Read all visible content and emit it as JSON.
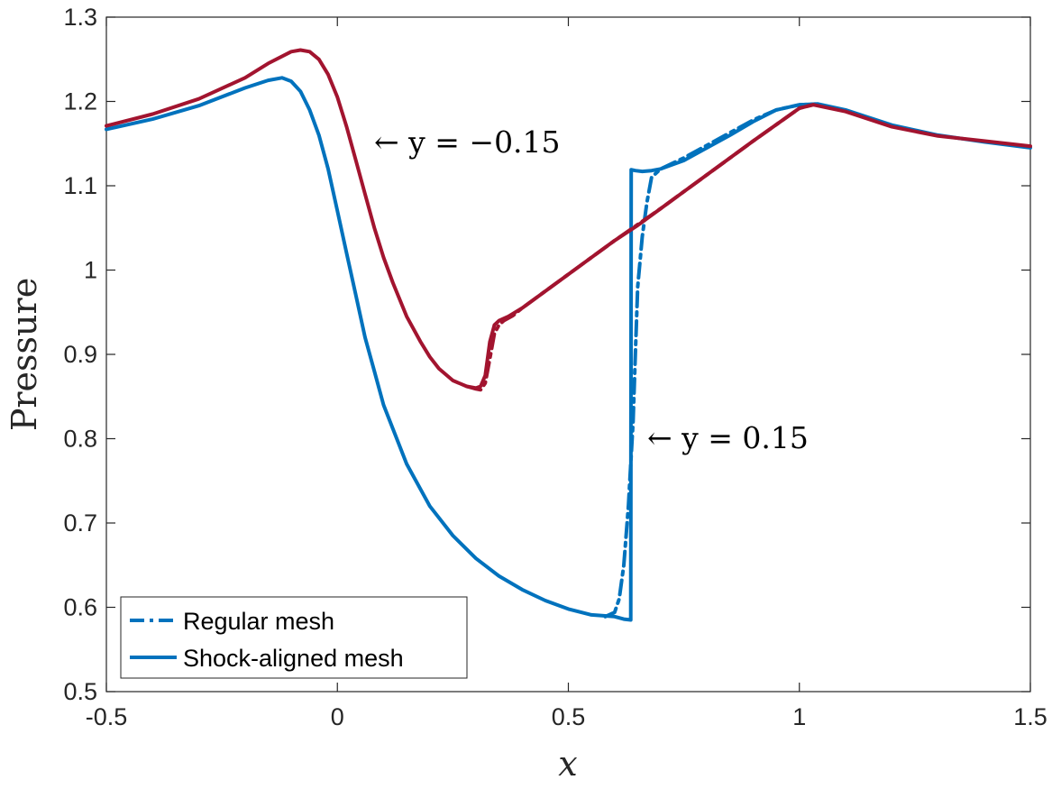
{
  "chart_data": {
    "type": "line",
    "xlabel": "x",
    "ylabel": "Pressure",
    "xlim": [
      -0.5,
      1.5
    ],
    "ylim": [
      0.5,
      1.3
    ],
    "xticks": [
      -0.5,
      0,
      0.5,
      1,
      1.5
    ],
    "xtick_labels": [
      "-0.5",
      "0",
      "0.5",
      "1",
      "1.5"
    ],
    "yticks": [
      0.5,
      0.6,
      0.7,
      0.8,
      0.9,
      1.0,
      1.1,
      1.2,
      1.3
    ],
    "ytick_labels": [
      "0.5",
      "0.6",
      "0.7",
      "0.8",
      "0.9",
      "1",
      "1.1",
      "1.2",
      "1.3"
    ],
    "grid": false,
    "legend": {
      "position": "bottom-left",
      "entries": [
        {
          "label": "Regular mesh",
          "style": "dashdot",
          "color": "#0072BD"
        },
        {
          "label": "Shock-aligned mesh",
          "style": "solid",
          "color": "#0072BD"
        }
      ]
    },
    "annotations": [
      {
        "text": "← y = −0.15",
        "x": 0.08,
        "y": 1.15
      },
      {
        "text": "← y = 0.15",
        "x": 0.67,
        "y": 0.8
      }
    ],
    "series": [
      {
        "curve": "y=0.15 shock-aligned",
        "style": "solid",
        "color": "#0072BD",
        "x": [
          -0.5,
          -0.4,
          -0.3,
          -0.2,
          -0.15,
          -0.12,
          -0.1,
          -0.08,
          -0.06,
          -0.04,
          -0.02,
          0,
          0.02,
          0.04,
          0.06,
          0.08,
          0.1,
          0.15,
          0.2,
          0.25,
          0.3,
          0.35,
          0.4,
          0.45,
          0.5,
          0.55,
          0.6,
          0.62,
          0.635,
          0.636,
          0.645,
          0.66,
          0.68,
          0.7,
          0.75,
          0.8,
          0.85,
          0.9,
          0.95,
          1.0,
          1.04,
          1.1,
          1.2,
          1.3,
          1.4,
          1.5
        ],
        "values": [
          1.167,
          1.179,
          1.195,
          1.216,
          1.225,
          1.228,
          1.224,
          1.212,
          1.19,
          1.16,
          1.12,
          1.07,
          1.02,
          0.97,
          0.92,
          0.88,
          0.84,
          0.77,
          0.72,
          0.685,
          0.658,
          0.637,
          0.621,
          0.608,
          0.598,
          0.591,
          0.589,
          0.586,
          0.585,
          1.119,
          1.118,
          1.117,
          1.118,
          1.12,
          1.13,
          1.145,
          1.16,
          1.176,
          1.19,
          1.196,
          1.197,
          1.19,
          1.172,
          1.16,
          1.152,
          1.145
        ]
      },
      {
        "curve": "y=0.15 regular",
        "style": "dashdot",
        "color": "#0072BD",
        "x": [
          0.58,
          0.6,
          0.61,
          0.62,
          0.63,
          0.64,
          0.645,
          0.65,
          0.66,
          0.67,
          0.68,
          0.7,
          0.75,
          0.8,
          0.85,
          0.9,
          0.95,
          1.0,
          1.04
        ],
        "values": [
          0.589,
          0.594,
          0.61,
          0.65,
          0.72,
          0.82,
          0.9,
          0.98,
          1.04,
          1.08,
          1.11,
          1.12,
          1.133,
          1.148,
          1.163,
          1.178,
          1.19,
          1.196,
          1.197
        ]
      },
      {
        "curve": "y=-0.15 shock-aligned",
        "style": "solid",
        "color": "#A2142F",
        "x": [
          -0.5,
          -0.4,
          -0.3,
          -0.2,
          -0.15,
          -0.1,
          -0.08,
          -0.06,
          -0.04,
          -0.02,
          0,
          0.02,
          0.04,
          0.06,
          0.08,
          0.1,
          0.12,
          0.15,
          0.18,
          0.2,
          0.22,
          0.25,
          0.28,
          0.3,
          0.31,
          0.32,
          0.33,
          0.34,
          0.35,
          0.37,
          0.4,
          0.5,
          0.6,
          0.65,
          0.7,
          0.8,
          0.9,
          1.0,
          1.03,
          1.1,
          1.2,
          1.3,
          1.4,
          1.5
        ],
        "values": [
          1.171,
          1.185,
          1.203,
          1.228,
          1.245,
          1.259,
          1.261,
          1.259,
          1.25,
          1.232,
          1.205,
          1.17,
          1.13,
          1.09,
          1.05,
          1.015,
          0.985,
          0.945,
          0.915,
          0.897,
          0.883,
          0.869,
          0.862,
          0.86,
          0.862,
          0.875,
          0.915,
          0.935,
          0.94,
          0.945,
          0.955,
          0.995,
          1.035,
          1.053,
          1.073,
          1.113,
          1.153,
          1.192,
          1.196,
          1.188,
          1.17,
          1.159,
          1.153,
          1.147
        ]
      },
      {
        "curve": "y=-0.15 regular",
        "style": "dashdot",
        "color": "#A2142F",
        "x": [
          0.28,
          0.3,
          0.31,
          0.32,
          0.33,
          0.34,
          0.35,
          0.36,
          0.38,
          0.4,
          0.45,
          0.5,
          0.6,
          0.7,
          0.8,
          0.9,
          1.0,
          1.03
        ],
        "values": [
          0.862,
          0.859,
          0.858,
          0.866,
          0.895,
          0.925,
          0.935,
          0.94,
          0.946,
          0.955,
          0.975,
          0.995,
          1.035,
          1.073,
          1.113,
          1.153,
          1.192,
          1.196
        ]
      }
    ]
  }
}
